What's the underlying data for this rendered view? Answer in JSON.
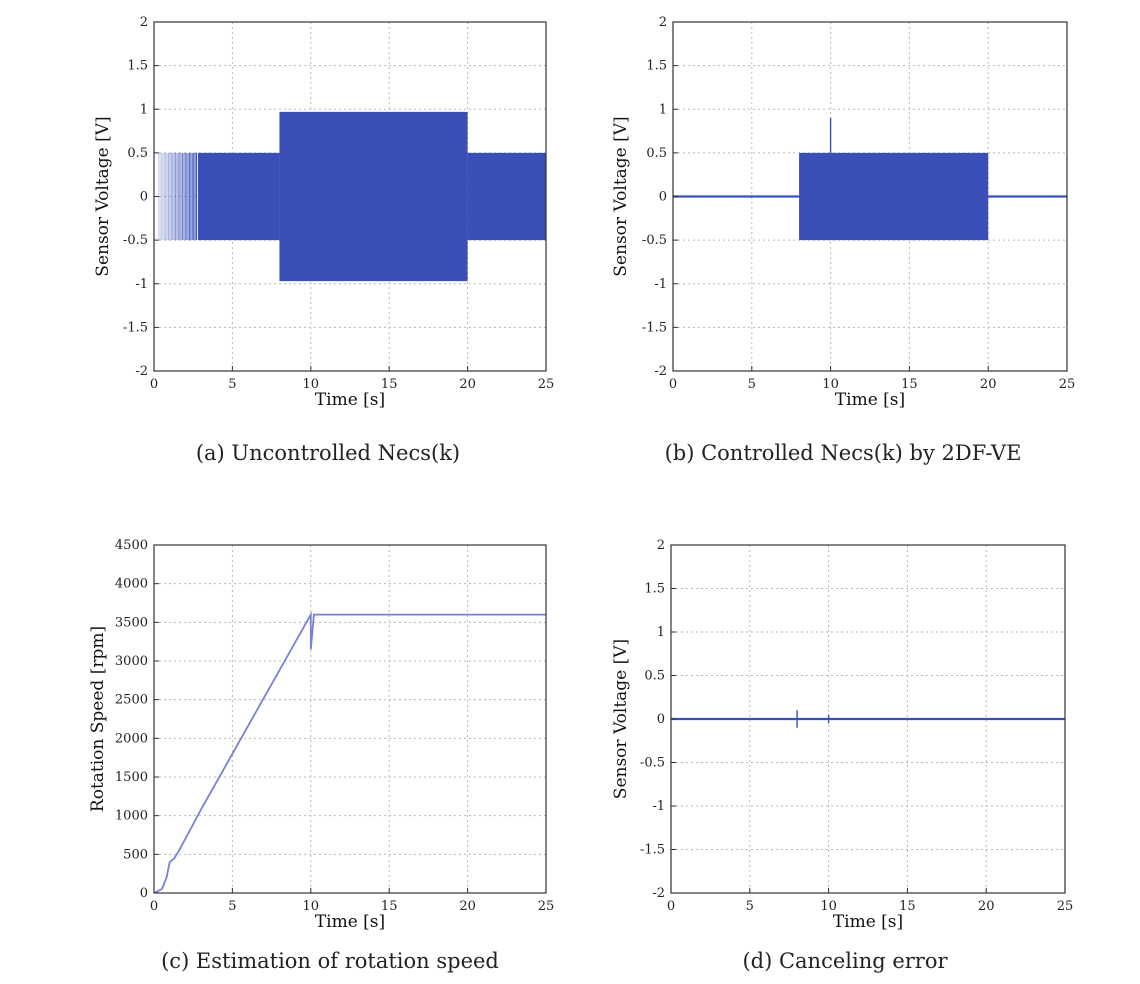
{
  "chart_data": [
    {
      "id": "a",
      "type": "area",
      "caption": "(a) Uncontrolled Necs(k)",
      "xlabel": "Time [s]",
      "ylabel": "Sensor Voltage [V]",
      "xlim": [
        0,
        25
      ],
      "ylim": [
        -2,
        2
      ],
      "xticks": [
        0,
        5,
        10,
        15,
        20,
        25
      ],
      "yticks": [
        -2,
        -1.5,
        -1,
        -0.5,
        0,
        0.5,
        1,
        1.5,
        2
      ],
      "grid": true,
      "series": [
        {
          "color": "#3a4fb8",
          "segments": [
            {
              "x": [
                0.3,
                8
              ],
              "amp": 0.5,
              "ramp_in": 2.5
            },
            {
              "x": [
                8,
                20
              ],
              "amp": 0.97
            },
            {
              "x": [
                20,
                25
              ],
              "amp": 0.5
            }
          ]
        }
      ]
    },
    {
      "id": "b",
      "type": "area",
      "caption": "(b) Controlled Necs(k) by 2DF-VE",
      "xlabel": "Time [s]",
      "ylabel": "Sensor Voltage [V]",
      "xlim": [
        0,
        25
      ],
      "ylim": [
        -2,
        2
      ],
      "xticks": [
        0,
        5,
        10,
        15,
        20,
        25
      ],
      "yticks": [
        -2,
        -1.5,
        -1,
        -0.5,
        0,
        0.5,
        1,
        1.5,
        2
      ],
      "grid": true,
      "series": [
        {
          "color": "#3a4fb8",
          "segments": [
            {
              "x": [
                8,
                20
              ],
              "amp": 0.5
            }
          ],
          "baseline": {
            "x": [
              0,
              25
            ],
            "y": 0
          },
          "spikes": [
            {
              "x": 10,
              "y": [
                0.5,
                0.9
              ]
            }
          ]
        }
      ]
    },
    {
      "id": "c",
      "type": "line",
      "caption": "(c) Estimation of rotation speed",
      "xlabel": "Time [s]",
      "ylabel": "Rotation Speed [rpm]",
      "xlim": [
        0,
        25
      ],
      "ylim": [
        0,
        4500
      ],
      "xticks": [
        0,
        5,
        10,
        15,
        20,
        25
      ],
      "yticks": [
        0,
        500,
        1000,
        1500,
        2000,
        2500,
        3000,
        3500,
        4000,
        4500
      ],
      "grid": true,
      "series": [
        {
          "color": "#7a7fd8",
          "x": [
            0,
            0.5,
            0.8,
            1.0,
            1.3,
            1.6,
            2.0,
            3,
            4,
            5,
            6,
            7,
            8,
            9,
            10,
            10,
            10.2,
            12,
            15,
            20,
            25
          ],
          "y": [
            0,
            50,
            200,
            400,
            450,
            550,
            700,
            1080,
            1440,
            1800,
            2160,
            2520,
            2880,
            3240,
            3600,
            3150,
            3600,
            3600,
            3600,
            3600,
            3600
          ]
        }
      ]
    },
    {
      "id": "d",
      "type": "line",
      "caption": "(d) Canceling error",
      "xlabel": "Time [s]",
      "ylabel": "Sensor Voltage [V]",
      "xlim": [
        0,
        25
      ],
      "ylim": [
        -2,
        2
      ],
      "xticks": [
        0,
        5,
        10,
        15,
        20,
        25
      ],
      "yticks": [
        -2,
        -1.5,
        -1,
        -0.5,
        0,
        0.5,
        1,
        1.5,
        2
      ],
      "grid": true,
      "series": [
        {
          "color": "#3a4fb8",
          "x": [
            0,
            25
          ],
          "y": [
            0,
            0
          ],
          "spikes": [
            {
              "x": 8,
              "y": [
                -0.1,
                0.1
              ]
            },
            {
              "x": 10,
              "y": [
                -0.05,
                0.05
              ]
            }
          ]
        }
      ]
    }
  ]
}
